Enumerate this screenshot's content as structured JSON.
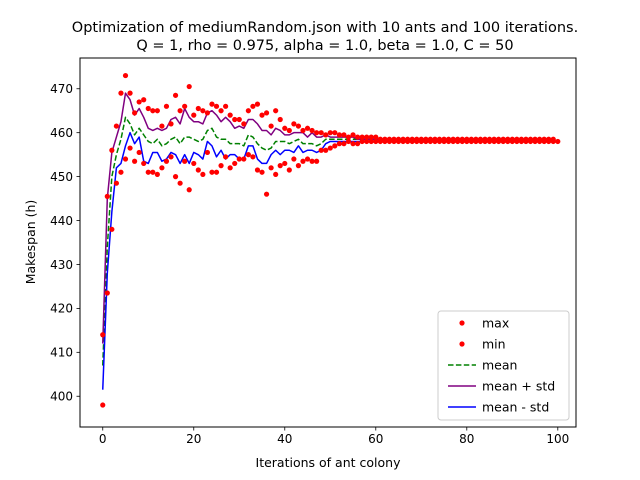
{
  "chart_data": {
    "type": "line",
    "title_line1": "Optimization of mediumRandom.json with 10 ants and 100 iterations.",
    "title_line2": "Q = 1, rho = 0.975, alpha = 1.0, beta = 1.0, C = 50",
    "xlabel": "Iterations of ant colony",
    "ylabel": "Makespan (h)",
    "xlim": [
      -5,
      104
    ],
    "ylim": [
      393,
      477
    ],
    "xticks": [
      0,
      20,
      40,
      60,
      80,
      100
    ],
    "yticks": [
      400,
      410,
      420,
      430,
      440,
      450,
      460,
      470
    ],
    "grid": false,
    "legend_position": "lower-right",
    "colors": {
      "max": "#ff0000",
      "min": "#ff0000",
      "mean": "#008000",
      "mean_plus_std": "#800080",
      "mean_minus_std": "#0000ff"
    },
    "series": [
      {
        "name": "max",
        "style": "dots",
        "values": [
          414,
          445.5,
          456,
          461.5,
          469,
          473,
          469,
          464.5,
          467,
          467.5,
          465.5,
          465,
          465,
          461.5,
          466,
          462,
          468.5,
          465,
          466,
          470.5,
          464,
          465.5,
          465,
          464.5,
          466.5,
          466,
          465,
          466,
          464,
          463,
          463,
          462,
          465,
          466,
          466.5,
          464,
          464.5,
          461.5,
          465,
          463,
          461,
          460.5,
          462,
          461.5,
          460.5,
          461,
          460.5,
          460,
          460,
          459.5,
          460,
          460,
          459.5,
          459.5,
          459,
          459.5,
          459,
          459,
          459,
          459,
          459,
          458.5,
          458.5,
          458.5,
          458.5,
          458.5,
          458.5,
          458.5,
          458.5,
          458.5,
          458.5,
          458.5,
          458.5,
          458.5,
          458.5,
          458.5,
          458.5,
          458.5,
          458.5,
          458.5,
          458.5,
          458.5,
          458.5,
          458.5,
          458.5,
          458.5,
          458.5,
          458.5,
          458.5,
          458.5,
          458.5,
          458.5,
          458.5,
          458.5,
          458.5,
          458.5,
          458.5,
          458.5,
          458.5,
          458.5
        ]
      },
      {
        "name": "min",
        "style": "dots",
        "values": [
          398,
          423.5,
          438,
          448.5,
          451,
          454,
          456.5,
          453.5,
          455.5,
          453,
          451,
          451,
          450.5,
          452,
          453.5,
          454.5,
          450,
          448.5,
          453.5,
          447,
          453,
          451.5,
          450.5,
          455.5,
          451,
          451,
          452.5,
          454.5,
          452,
          453,
          454,
          454,
          455,
          454.5,
          451.5,
          451,
          446,
          452,
          450.5,
          452.5,
          453,
          451.5,
          454,
          452.5,
          453.5,
          454,
          453.5,
          453.5,
          456,
          456,
          456.5,
          457,
          457.5,
          457.5,
          458,
          457.5,
          457.5,
          458,
          458,
          458,
          458,
          458,
          458,
          458,
          458,
          458,
          458,
          458,
          458,
          458,
          458,
          458,
          458,
          458,
          458,
          458,
          458,
          458,
          458,
          458,
          458,
          458,
          458,
          458,
          458,
          458,
          458,
          458,
          458,
          458,
          458,
          458,
          458,
          458,
          458,
          458,
          458,
          458,
          458,
          458,
          458
        ]
      },
      {
        "name": "mean",
        "style": "dashed",
        "values": [
          407,
          434,
          450,
          455,
          458.5,
          463.5,
          462,
          459.5,
          461,
          459.5,
          458,
          457.5,
          458.5,
          457,
          457.5,
          458.5,
          459,
          457.5,
          459,
          459,
          458.5,
          458,
          458.5,
          460.5,
          461,
          459,
          458.5,
          458.5,
          457.5,
          457.5,
          457.5,
          457,
          459.5,
          459,
          457.5,
          456.5,
          456,
          456.5,
          458,
          458,
          458,
          457.5,
          458,
          458.5,
          457.5,
          457.5,
          457.5,
          457,
          457.5,
          458.5,
          458.5,
          458.5,
          458.5,
          458.5,
          458.5,
          458.5,
          458.5,
          458.5,
          458.5,
          458.5,
          458.5,
          458.5,
          458.5,
          458.5,
          458.5,
          458.5,
          458.5,
          458.5,
          458.5,
          458.5,
          458.5,
          458.5,
          458.5,
          458.5,
          458.5,
          458.5,
          458.5,
          458.5,
          458.5,
          458.5,
          458.5,
          458.5,
          458.5,
          458.5,
          458.5,
          458.5,
          458.5,
          458.5,
          458.5,
          458.5,
          458.5,
          458.5,
          458.5,
          458.5,
          458.5,
          458.5,
          458.5,
          458.5,
          458.5,
          458.5
        ]
      },
      {
        "name": "mean + std",
        "style": "solid",
        "values": [
          412,
          445,
          455.5,
          459,
          462.5,
          469,
          467.5,
          464,
          465.5,
          463.5,
          461,
          460.5,
          461,
          460.5,
          461,
          463,
          463.5,
          462,
          465.5,
          463.5,
          462.5,
          462.5,
          462,
          464.5,
          465,
          464,
          462.5,
          463.5,
          462.5,
          461,
          461.5,
          461,
          463,
          463,
          462,
          460.5,
          460.5,
          459.5,
          461,
          460.5,
          459.5,
          459.5,
          460,
          460,
          460,
          459,
          460,
          459,
          459,
          459.5,
          459,
          459,
          459,
          459,
          459,
          459,
          458.5,
          458.5,
          458.5,
          458.5,
          458.5,
          458.5,
          458.5,
          458.5,
          458.5,
          458.5,
          458.5,
          458.5,
          458.5,
          458.5,
          458.5,
          458.5,
          458.5,
          458.5,
          458.5,
          458.5,
          458.5,
          458.5,
          458.5,
          458.5,
          458.5,
          458.5,
          458.5,
          458.5,
          458.5,
          458.5,
          458.5,
          458.5,
          458.5,
          458.5,
          458.5,
          458.5,
          458.5,
          458.5,
          458.5,
          458.5,
          458.5,
          458.5,
          458.5,
          458.5
        ]
      },
      {
        "name": "mean - std",
        "style": "solid",
        "values": [
          401.5,
          428,
          442,
          452,
          453,
          457,
          460,
          457.5,
          459,
          453.5,
          453,
          455.5,
          455.5,
          453.5,
          454,
          455.5,
          455,
          453,
          455,
          453,
          455.5,
          455,
          454,
          458,
          457,
          454.5,
          456,
          454,
          455,
          455,
          454,
          454,
          457,
          457,
          454,
          453,
          453,
          455,
          456,
          455,
          456,
          456,
          455.5,
          457,
          455.5,
          456,
          456,
          455.5,
          456,
          457.5,
          458,
          458,
          458,
          458,
          458,
          458,
          458,
          458,
          458,
          458,
          458,
          458,
          458,
          458,
          458,
          458,
          458,
          458,
          458,
          458,
          458,
          458,
          458,
          458,
          458,
          458,
          458,
          458,
          458,
          458,
          458,
          458,
          458,
          458,
          458,
          458,
          458,
          458,
          458,
          458,
          458,
          458,
          458,
          458,
          458,
          458,
          458,
          458,
          458,
          458
        ]
      }
    ]
  }
}
